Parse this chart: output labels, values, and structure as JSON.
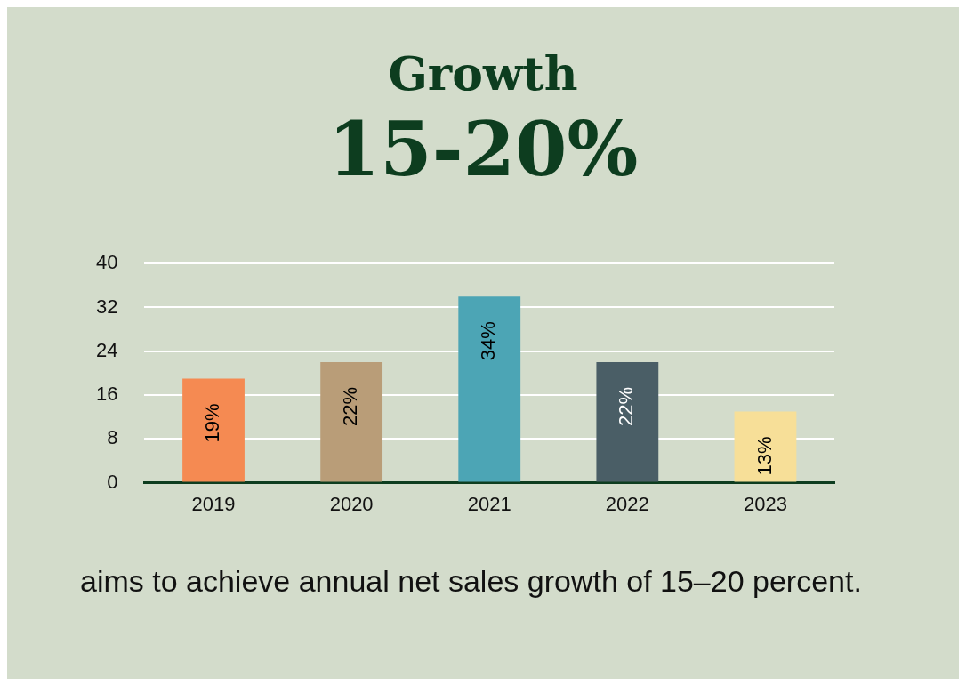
{
  "chart_data": {
    "type": "bar",
    "title": "Growth",
    "subtitle": "15-20%",
    "categories": [
      "2019",
      "2020",
      "2021",
      "2022",
      "2023"
    ],
    "values": [
      19,
      22,
      34,
      22,
      13
    ],
    "colors": [
      "#f58a52",
      "#b99d78",
      "#4ca5b5",
      "#4a5e66",
      "#f7df98"
    ],
    "value_labels": [
      "19%",
      "22%",
      "34%",
      "22%",
      "13%"
    ],
    "ylim": [
      0,
      40
    ],
    "yticks": [
      0,
      8,
      16,
      24,
      32,
      40
    ],
    "grid": "y",
    "legend": false,
    "annotations": [
      "aims to achieve annual net sales growth of 15–20 percent."
    ]
  }
}
